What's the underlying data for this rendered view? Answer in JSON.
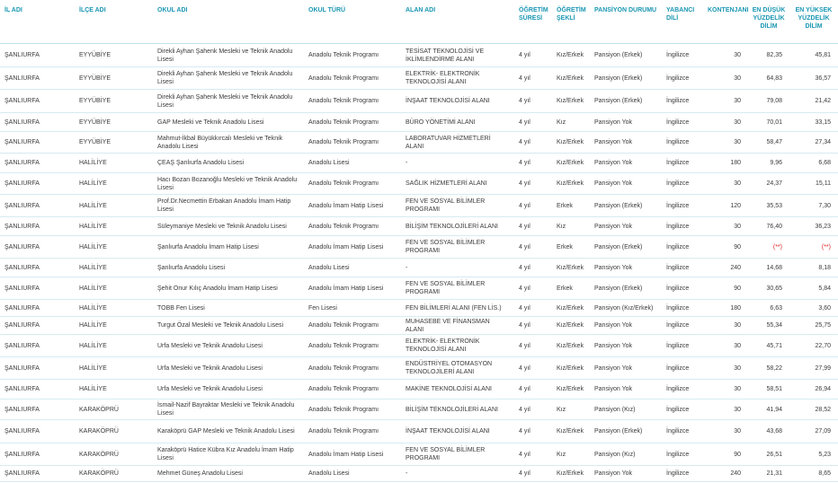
{
  "table": {
    "headers": [
      "İL ADI",
      "İLÇE ADI",
      "OKUL ADI",
      "OKUL TÜRÜ",
      "ALAN ADI",
      "ÖĞRETİM SÜRESİ",
      "ÖĞRETİM ŞEKLİ",
      "PANSİYON DURUMU",
      "YABANCI DİLİ",
      "KONTENJANI",
      "EN DÜŞÜK YÜZDELİK DİLİM",
      "EN YÜKSEK YÜZDELİK DİLİM"
    ],
    "rows": [
      [
        "ŞANLIURFA",
        "EYYÜBİYE",
        "Direkli Ayhan Şahenk Mesleki ve Teknik Anadolu Lisesi",
        "Anadolu Teknik Programı",
        "TESİSAT TEKNOLOJİSİ VE İKLİMLENDİRME ALANI",
        "4 yıl",
        "Kız/Erkek",
        "Pansiyon (Erkek)",
        "İngilizce",
        "30",
        "82,35",
        "45,81"
      ],
      [
        "ŞANLIURFA",
        "EYYÜBİYE",
        "Direkli Ayhan Şahenk Mesleki ve Teknik Anadolu Lisesi",
        "Anadolu Teknik Programı",
        "ELEKTRİK- ELEKTRONİK TEKNOLOJİSİ ALANI",
        "4 yıl",
        "Kız/Erkek",
        "Pansiyon (Erkek)",
        "İngilizce",
        "30",
        "64,83",
        "36,57"
      ],
      [
        "ŞANLIURFA",
        "EYYÜBİYE",
        "Direkli Ayhan Şahenk Mesleki ve Teknik Anadolu Lisesi",
        "Anadolu Teknik Programı",
        "İNŞAAT TEKNOLOJİSİ ALANI",
        "4 yıl",
        "Kız/Erkek",
        "Pansiyon (Erkek)",
        "İngilizce",
        "30",
        "79,08",
        "21,42"
      ],
      [
        "ŞANLIURFA",
        "EYYÜBİYE",
        "GAP Mesleki ve Teknik Anadolu Lisesi",
        "Anadolu Teknik Programı",
        "BÜRO YÖNETİMİ ALANI",
        "4 yıl",
        "Kız",
        "Pansiyon Yok",
        "İngilizce",
        "30",
        "70,01",
        "33,15"
      ],
      [
        "ŞANLIURFA",
        "EYYÜBİYE",
        "Mahmut-İkbal Büyükkırcalı Mesleki ve Teknik Anadolu Lisesi",
        "Anadolu Teknik Programı",
        "LABORATUVAR HİZMETLERİ ALANI",
        "4 yıl",
        "Kız/Erkek",
        "Pansiyon Yok",
        "İngilizce",
        "30",
        "58,47",
        "27,34"
      ],
      [
        "ŞANLIURFA",
        "HALİLİYE",
        "ÇEAŞ Şanlıurfa Anadolu Lisesi",
        "Anadolu Lisesi",
        "-",
        "4 yıl",
        "Kız/Erkek",
        "Pansiyon Yok",
        "İngilizce",
        "180",
        "9,96",
        "6,68"
      ],
      [
        "ŞANLIURFA",
        "HALİLİYE",
        "Hacı Bozan Bozanoğlu Mesleki ve Teknik Anadolu Lisesi",
        "Anadolu Teknik Programı",
        "SAĞLIK HİZMETLERİ ALANI",
        "4 yıl",
        "Kız/Erkek",
        "Pansiyon Yok",
        "İngilizce",
        "30",
        "24,37",
        "15,11"
      ],
      [
        "ŞANLIURFA",
        "HALİLİYE",
        "Prof.Dr.Necmettin Erbakan Anadolu İmam Hatip Lisesi",
        "Anadolu İmam Hatip Lisesi",
        "FEN VE SOSYAL BİLİMLER PROGRAMI",
        "4 yıl",
        "Erkek",
        "Pansiyon (Erkek)",
        "İngilizce",
        "120",
        "35,53",
        "7,30"
      ],
      [
        "ŞANLIURFA",
        "HALİLİYE",
        "Süleymaniye Mesleki ve Teknik Anadolu Lisesi",
        "Anadolu Teknik Programı",
        "BİLİŞİM TEKNOLOJİLERİ ALANI",
        "4 yıl",
        "Kız",
        "Pansiyon Yok",
        "İngilizce",
        "30",
        "76,40",
        "36,23"
      ],
      [
        "ŞANLIURFA",
        "HALİLİYE",
        "Şanlıurfa Anadolu İmam Hatip Lisesi",
        "Anadolu İmam Hatip Lisesi",
        "FEN VE SOSYAL BİLİMLER PROGRAMI",
        "4 yıl",
        "Erkek",
        "Pansiyon (Erkek)",
        "İngilizce",
        "90",
        "(**)",
        "(**)"
      ],
      [
        "ŞANLIURFA",
        "HALİLİYE",
        "Şanlıurfa Anadolu Lisesi",
        "Anadolu Lisesi",
        "-",
        "4 yıl",
        "Kız/Erkek",
        "Pansiyon Yok",
        "İngilizce",
        "240",
        "14,68",
        "8,18"
      ],
      [
        "ŞANLIURFA",
        "HALİLİYE",
        "Şehit Onur Kılıç Anadolu İmam Hatip Lisesi",
        "Anadolu İmam Hatip Lisesi",
        "FEN VE SOSYAL BİLİMLER PROGRAMI",
        "4 yıl",
        "Erkek",
        "Pansiyon (Erkek)",
        "İngilizce",
        "90",
        "30,65",
        "5,84"
      ],
      [
        "ŞANLIURFA",
        "HALİLİYE",
        "TOBB Fen Lisesi",
        "Fen Lisesi",
        "FEN BİLİMLERİ ALANI (FEN LİS.)",
        "4 yıl",
        "Kız/Erkek",
        "Pansiyon (Kız/Erkek)",
        "İngilizce",
        "180",
        "6,63",
        "3,60"
      ],
      [
        "ŞANLIURFA",
        "HALİLİYE",
        "Turgut Özal Mesleki ve Teknik Anadolu Lisesi",
        "Anadolu Teknik Programı",
        "MUHASEBE VE FİNANSMAN ALANI",
        "4 yıl",
        "Kız/Erkek",
        "Pansiyon Yok",
        "İngilizce",
        "30",
        "55,34",
        "25,75"
      ],
      [
        "ŞANLIURFA",
        "HALİLİYE",
        "Urfa Mesleki ve Teknik Anadolu Lisesi",
        "Anadolu Teknik Programı",
        "ELEKTRİK- ELEKTRONİK TEKNOLOJİSİ ALANI",
        "4 yıl",
        "Kız/Erkek",
        "Pansiyon Yok",
        "İngilizce",
        "30",
        "45,71",
        "22,70"
      ],
      [
        "ŞANLIURFA",
        "HALİLİYE",
        "Urfa Mesleki ve Teknik Anadolu Lisesi",
        "Anadolu Teknik Programı",
        "ENDÜSTRİYEL OTOMASYON TEKNOLOJİLERİ ALANI",
        "4 yıl",
        "Kız/Erkek",
        "Pansiyon Yok",
        "İngilizce",
        "30",
        "58,22",
        "27,99"
      ],
      [
        "ŞANLIURFA",
        "HALİLİYE",
        "Urfa Mesleki ve Teknik Anadolu Lisesi",
        "Anadolu Teknik Programı",
        "MAKİNE TEKNOLOJİSİ ALANI",
        "4 yıl",
        "Kız/Erkek",
        "Pansiyon Yok",
        "İngilizce",
        "30",
        "58,51",
        "26,94"
      ],
      [
        "ŞANLIURFA",
        "KARAKÖPRÜ",
        "İsmail-Nazif Bayraktar Mesleki ve Teknik Anadolu Lisesi",
        "Anadolu Teknik Programı",
        "BİLİŞİM TEKNOLOJİLERİ ALANI",
        "4 yıl",
        "Kız",
        "Pansiyon (Kız)",
        "İngilizce",
        "30",
        "41,94",
        "28,52"
      ],
      [
        "ŞANLIURFA",
        "KARAKÖPRÜ",
        "Karaköprü GAP Mesleki ve Teknik Anadolu Lisesi",
        "Anadolu Teknik Programı",
        "İNŞAAT TEKNOLOJİSİ ALANI",
        "4 yıl",
        "Kız/Erkek",
        "Pansiyon (Erkek)",
        "İngilizce",
        "30",
        "43,68",
        "27,09"
      ],
      [
        "ŞANLIURFA",
        "KARAKÖPRÜ",
        "Karaköprü Hatice Kübra Kız Anadolu İmam Hatip Lisesi",
        "Anadolu İmam Hatip Lisesi",
        "FEN VE SOSYAL BİLİMLER PROGRAMI",
        "4 yıl",
        "Kız",
        "Pansiyon (Kız)",
        "İngilizce",
        "90",
        "26,51",
        "5,23"
      ],
      [
        "ŞANLIURFA",
        "KARAKÖPRÜ",
        "Mehmet Güneş Anadolu Lisesi",
        "Anadolu Lisesi",
        "-",
        "4 yıl",
        "Kız/Erkek",
        "Pansiyon Yok",
        "İngilizce",
        "240",
        "21,31",
        "8,65"
      ]
    ]
  }
}
